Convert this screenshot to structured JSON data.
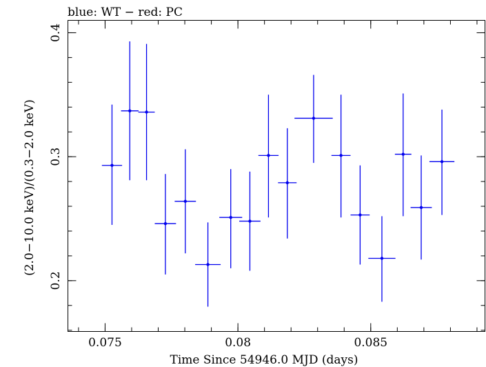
{
  "chart_data": {
    "type": "scatter",
    "title": "blue: WT − red: PC",
    "xlabel": "Time Since 54946.0 MJD (days)",
    "ylabel": "(2.0−10.0 keV)/(0.3−2.0 keV)",
    "xlim": [
      0.0736,
      0.0893
    ],
    "ylim": [
      0.159,
      0.41
    ],
    "xticks": [
      {
        "value": 0.075,
        "label": "0.075"
      },
      {
        "value": 0.08,
        "label": "0.08"
      },
      {
        "value": 0.085,
        "label": "0.085"
      }
    ],
    "yticks": [
      {
        "value": 0.2,
        "label": "0.2"
      },
      {
        "value": 0.3,
        "label": "0.3"
      },
      {
        "value": 0.4,
        "label": "0.4"
      }
    ],
    "x_minor_step": 0.001,
    "y_minor_step": 0.02,
    "grid": false,
    "series": [
      {
        "color": "#0000ee",
        "points": [
          {
            "x": 0.07526,
            "y": 0.293,
            "xerr": 0.00038,
            "ylo": 0.245,
            "yhi": 0.342
          },
          {
            "x": 0.07593,
            "y": 0.337,
            "xerr": 0.00033,
            "ylo": 0.281,
            "yhi": 0.393
          },
          {
            "x": 0.07656,
            "y": 0.336,
            "xerr": 0.00031,
            "ylo": 0.281,
            "yhi": 0.391
          },
          {
            "x": 0.07727,
            "y": 0.246,
            "xerr": 0.0004,
            "ylo": 0.205,
            "yhi": 0.286
          },
          {
            "x": 0.07802,
            "y": 0.264,
            "xerr": 0.0004,
            "ylo": 0.222,
            "yhi": 0.306
          },
          {
            "x": 0.07887,
            "y": 0.213,
            "xerr": 0.00048,
            "ylo": 0.179,
            "yhi": 0.247
          },
          {
            "x": 0.07973,
            "y": 0.251,
            "xerr": 0.00043,
            "ylo": 0.21,
            "yhi": 0.29
          },
          {
            "x": 0.08045,
            "y": 0.248,
            "xerr": 0.0004,
            "ylo": 0.208,
            "yhi": 0.288
          },
          {
            "x": 0.08115,
            "y": 0.301,
            "xerr": 0.00038,
            "ylo": 0.251,
            "yhi": 0.35
          },
          {
            "x": 0.08186,
            "y": 0.279,
            "xerr": 0.00035,
            "ylo": 0.234,
            "yhi": 0.323
          },
          {
            "x": 0.08285,
            "y": 0.331,
            "xerr": 0.00072,
            "ylo": 0.295,
            "yhi": 0.366
          },
          {
            "x": 0.08388,
            "y": 0.301,
            "xerr": 0.00036,
            "ylo": 0.251,
            "yhi": 0.35
          },
          {
            "x": 0.0846,
            "y": 0.253,
            "xerr": 0.00036,
            "ylo": 0.213,
            "yhi": 0.293
          },
          {
            "x": 0.08542,
            "y": 0.218,
            "xerr": 0.00051,
            "ylo": 0.183,
            "yhi": 0.252
          },
          {
            "x": 0.08622,
            "y": 0.302,
            "xerr": 0.00031,
            "ylo": 0.252,
            "yhi": 0.351
          },
          {
            "x": 0.0869,
            "y": 0.259,
            "xerr": 0.0004,
            "ylo": 0.217,
            "yhi": 0.301
          },
          {
            "x": 0.08768,
            "y": 0.296,
            "xerr": 0.00047,
            "ylo": 0.253,
            "yhi": 0.338
          }
        ]
      }
    ]
  }
}
